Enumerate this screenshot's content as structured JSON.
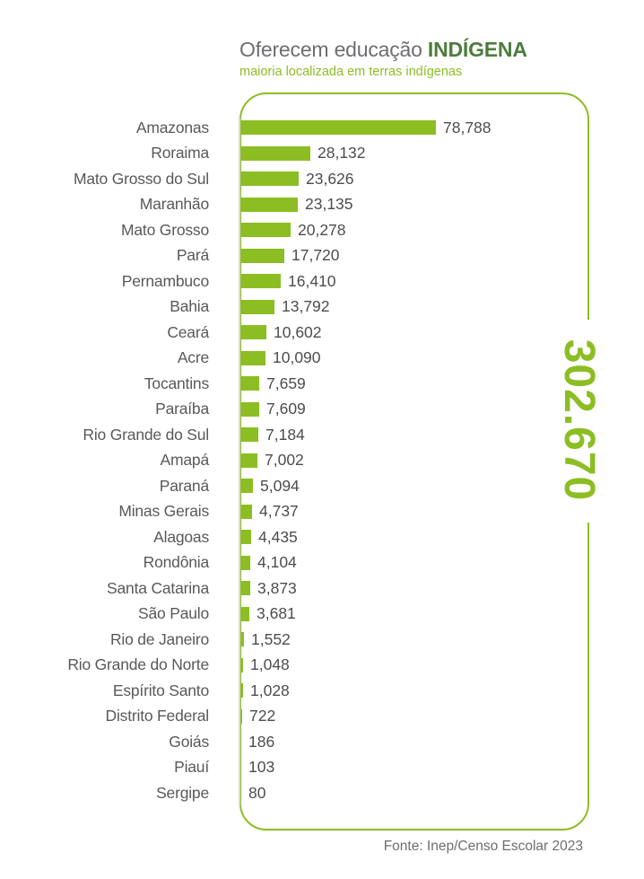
{
  "header": {
    "title_regular": "Oferecem educação ",
    "title_emphasis": "INDÍGENA",
    "subtitle": "maioria localizada em terras indígenas"
  },
  "total_label": "302.670",
  "footer": {
    "source": "Fonte: Inep/Censo Escolar 2023"
  },
  "colors": {
    "bar_green": "#8CBE23",
    "title_emphasis_green": "#4D7C3E",
    "title_gray": "#6D6E71",
    "label_gray": "#58595B",
    "axis_gray": "#D6D8D9"
  },
  "chart_data": {
    "type": "bar",
    "orientation": "horizontal",
    "title": "Oferecem educação INDÍGENA",
    "subtitle": "maioria localizada em terras indígenas",
    "total": 302670,
    "total_label": "302.670",
    "source": "Fonte: Inep/Censo Escolar 2023",
    "xlim": [
      0,
      80000
    ],
    "grid": false,
    "legend": false,
    "categories": [
      "Amazonas",
      "Roraima",
      "Mato Grosso do Sul",
      "Maranhão",
      "Mato Grosso",
      "Pará",
      "Pernambuco",
      "Bahia",
      "Ceará",
      "Acre",
      "Tocantins",
      "Paraíba",
      "Rio Grande do Sul",
      "Amapá",
      "Paraná",
      "Minas Gerais",
      "Alagoas",
      "Rondônia",
      "Santa Catarina",
      "São Paulo",
      "Rio de Janeiro",
      "Rio Grande do Norte",
      "Espírito Santo",
      "Distrito Federal",
      "Goiás",
      "Piauí",
      "Sergipe"
    ],
    "values": [
      78788,
      28132,
      23626,
      23135,
      20278,
      17720,
      16410,
      13792,
      10602,
      10090,
      7659,
      7609,
      7184,
      7002,
      5094,
      4737,
      4435,
      4104,
      3873,
      3681,
      1552,
      1048,
      1028,
      722,
      186,
      103,
      80
    ],
    "value_labels": [
      "78,788",
      "28,132",
      "23,626",
      "23,135",
      "20,278",
      "17,720",
      "16,410",
      "13,792",
      "10,602",
      "10,090",
      "7,659",
      "7,609",
      "7,184",
      "7,002",
      "5,094",
      "4,737",
      "4,435",
      "4,104",
      "3,873",
      "3,681",
      "1,552",
      "1,048",
      "1,028",
      "722",
      "186",
      "103",
      "80"
    ]
  }
}
